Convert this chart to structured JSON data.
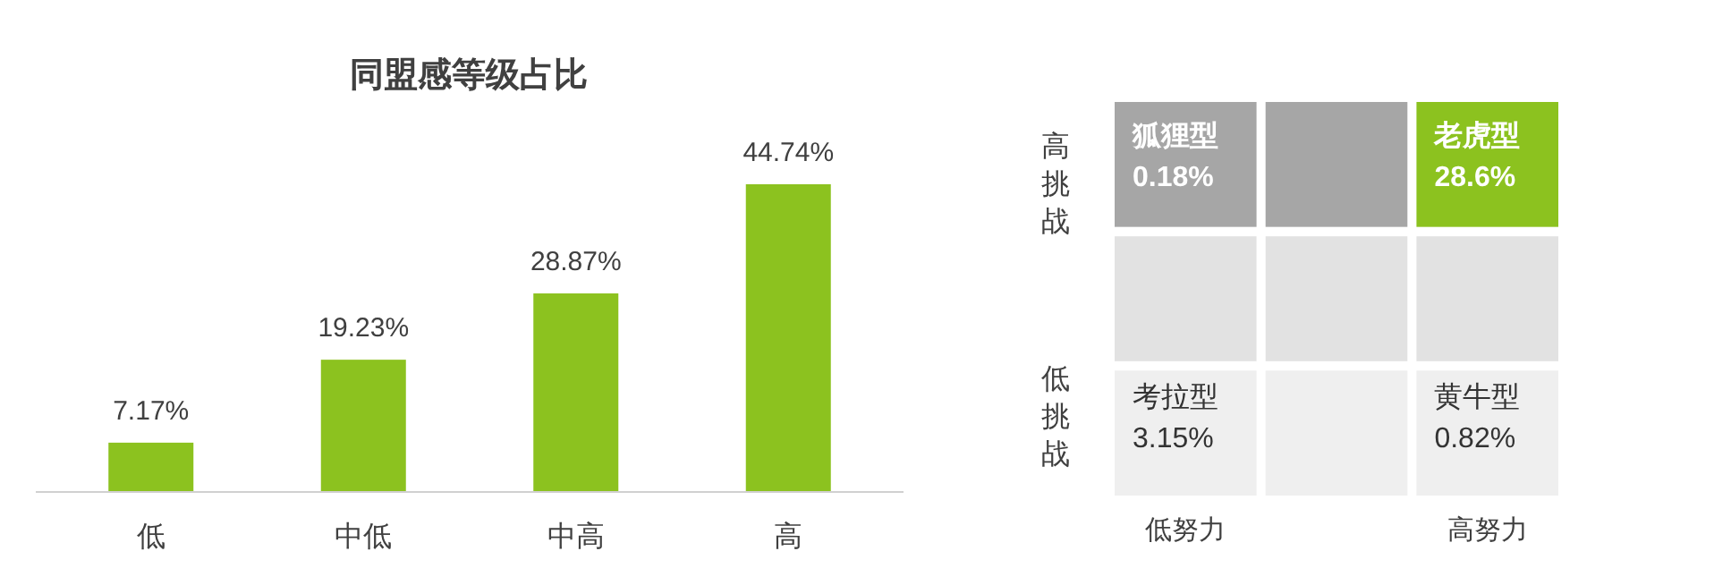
{
  "chart_data": [
    {
      "type": "bar",
      "title": "同盟感等级占比",
      "categories": [
        "低",
        "中低",
        "中高",
        "高"
      ],
      "values": [
        7.17,
        19.23,
        28.87,
        44.74
      ],
      "color": "#8cc21f",
      "value_labels": [
        "7.17%",
        "19.23%",
        "28.87%",
        "44.74%"
      ]
    },
    {
      "type": "other",
      "categories": [
        "低努力",
        null,
        "高努力"
      ],
      "y_categories": [
        "高挑战",
        null,
        "低挑战"
      ],
      "annotations": [
        {
          "text": "狐狸型\n0.18%",
          "x": "低努力",
          "y": "高挑战"
        },
        {
          "text": "老虎型\n28.6%",
          "x": "高努力",
          "y": "高挑战"
        },
        {
          "text": "考拉型\n3.15%",
          "x": "低努力",
          "y": "低挑战"
        },
        {
          "text": "黄牛型\n0.82%",
          "x": "高努力",
          "y": "低挑战"
        }
      ],
      "colors": [
        [
          "#a6a6a6",
          "#a6a6a6",
          "#8cc21f"
        ],
        [
          "#e2e2e2",
          "#e2e2e2",
          "#e2e2e2"
        ],
        [
          "#efefef",
          "#efefef",
          "#efefef"
        ]
      ]
    }
  ]
}
